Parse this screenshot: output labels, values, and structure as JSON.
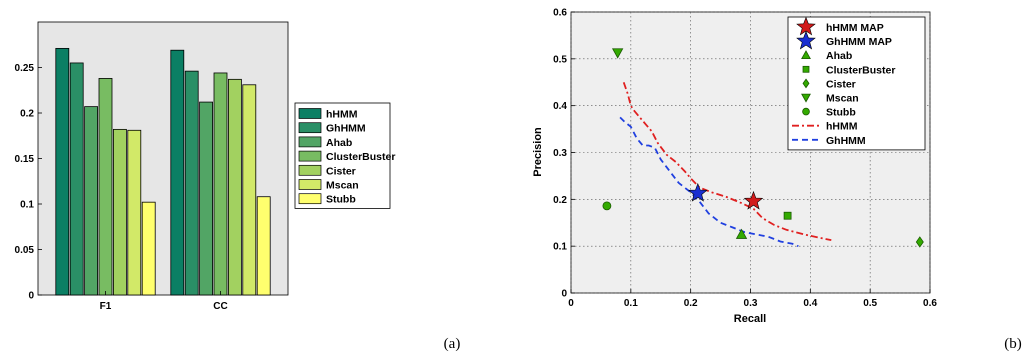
{
  "chart_data": [
    {
      "type": "bar",
      "panel_label": "(a)",
      "categories": [
        "F1",
        "CC"
      ],
      "series": [
        {
          "name": "hHMM",
          "values": [
            0.271,
            0.269
          ],
          "color": "#0b7f64"
        },
        {
          "name": "GhHMM",
          "values": [
            0.255,
            0.246
          ],
          "color": "#2a8f66"
        },
        {
          "name": "Ahab",
          "values": [
            0.207,
            0.212
          ],
          "color": "#52a565"
        },
        {
          "name": "ClusterBuster",
          "values": [
            0.238,
            0.244
          ],
          "color": "#78bc62"
        },
        {
          "name": "Cister",
          "values": [
            0.182,
            0.237
          ],
          "color": "#a2d160"
        },
        {
          "name": "Mscan",
          "values": [
            0.181,
            0.231
          ],
          "color": "#d2e968"
        },
        {
          "name": "Stubb",
          "values": [
            0.102,
            0.108
          ],
          "color": "#ffff6e"
        }
      ],
      "ylim": [
        0,
        0.3
      ],
      "yticks": [
        "0",
        "0.05",
        "0.1",
        "0.15",
        "0.2",
        "0.25"
      ],
      "legend_position": "right-outside",
      "grid": false
    },
    {
      "type": "scatter",
      "panel_label": "(b)",
      "xlabel": "Recall",
      "ylabel": "Precision",
      "xlim": [
        0,
        0.6
      ],
      "ylim": [
        0,
        0.6
      ],
      "xticks": [
        "0",
        "0.1",
        "0.2",
        "0.3",
        "0.4",
        "0.5",
        "0.6"
      ],
      "yticks": [
        "0",
        "0.1",
        "0.2",
        "0.3",
        "0.4",
        "0.5",
        "0.6"
      ],
      "grid": true,
      "legend_position": "top-right",
      "points": [
        {
          "name": "hHMM MAP",
          "x": 0.305,
          "y": 0.196,
          "marker": "star",
          "color": "#d11a1a"
        },
        {
          "name": "GhHMM MAP",
          "x": 0.212,
          "y": 0.213,
          "marker": "star",
          "color": "#1a2fd1"
        },
        {
          "name": "Ahab",
          "x": 0.285,
          "y": 0.125,
          "marker": "triangle-up",
          "color": "#33aa00"
        },
        {
          "name": "ClusterBuster",
          "x": 0.362,
          "y": 0.165,
          "marker": "square",
          "color": "#33aa00"
        },
        {
          "name": "Cister",
          "x": 0.583,
          "y": 0.109,
          "marker": "diamond",
          "color": "#33aa00"
        },
        {
          "name": "Mscan",
          "x": 0.078,
          "y": 0.513,
          "marker": "triangle-down",
          "color": "#33aa00"
        },
        {
          "name": "Stubb",
          "x": 0.06,
          "y": 0.186,
          "marker": "circle",
          "color": "#33aa00"
        }
      ],
      "series": [
        {
          "name": "hHMM",
          "style": "dash-dot",
          "color": "#e02020",
          "x": [
            0.088,
            0.095,
            0.1,
            0.105,
            0.115,
            0.125,
            0.135,
            0.145,
            0.16,
            0.175,
            0.19,
            0.2,
            0.215,
            0.235,
            0.26,
            0.285,
            0.305,
            0.32,
            0.34,
            0.36,
            0.39,
            0.415,
            0.435
          ],
          "y": [
            0.45,
            0.425,
            0.4,
            0.39,
            0.375,
            0.36,
            0.345,
            0.32,
            0.295,
            0.28,
            0.26,
            0.245,
            0.225,
            0.215,
            0.205,
            0.192,
            0.18,
            0.16,
            0.145,
            0.135,
            0.125,
            0.118,
            0.113
          ]
        },
        {
          "name": "GhHMM",
          "style": "dashed",
          "color": "#2040e0",
          "x": [
            0.082,
            0.09,
            0.1,
            0.11,
            0.12,
            0.13,
            0.14,
            0.15,
            0.165,
            0.18,
            0.2,
            0.215,
            0.23,
            0.25,
            0.27,
            0.29,
            0.31,
            0.33,
            0.35,
            0.37,
            0.38
          ],
          "y": [
            0.375,
            0.365,
            0.355,
            0.33,
            0.315,
            0.315,
            0.31,
            0.285,
            0.26,
            0.235,
            0.215,
            0.195,
            0.17,
            0.15,
            0.14,
            0.13,
            0.125,
            0.12,
            0.11,
            0.105,
            0.1
          ]
        }
      ]
    }
  ]
}
